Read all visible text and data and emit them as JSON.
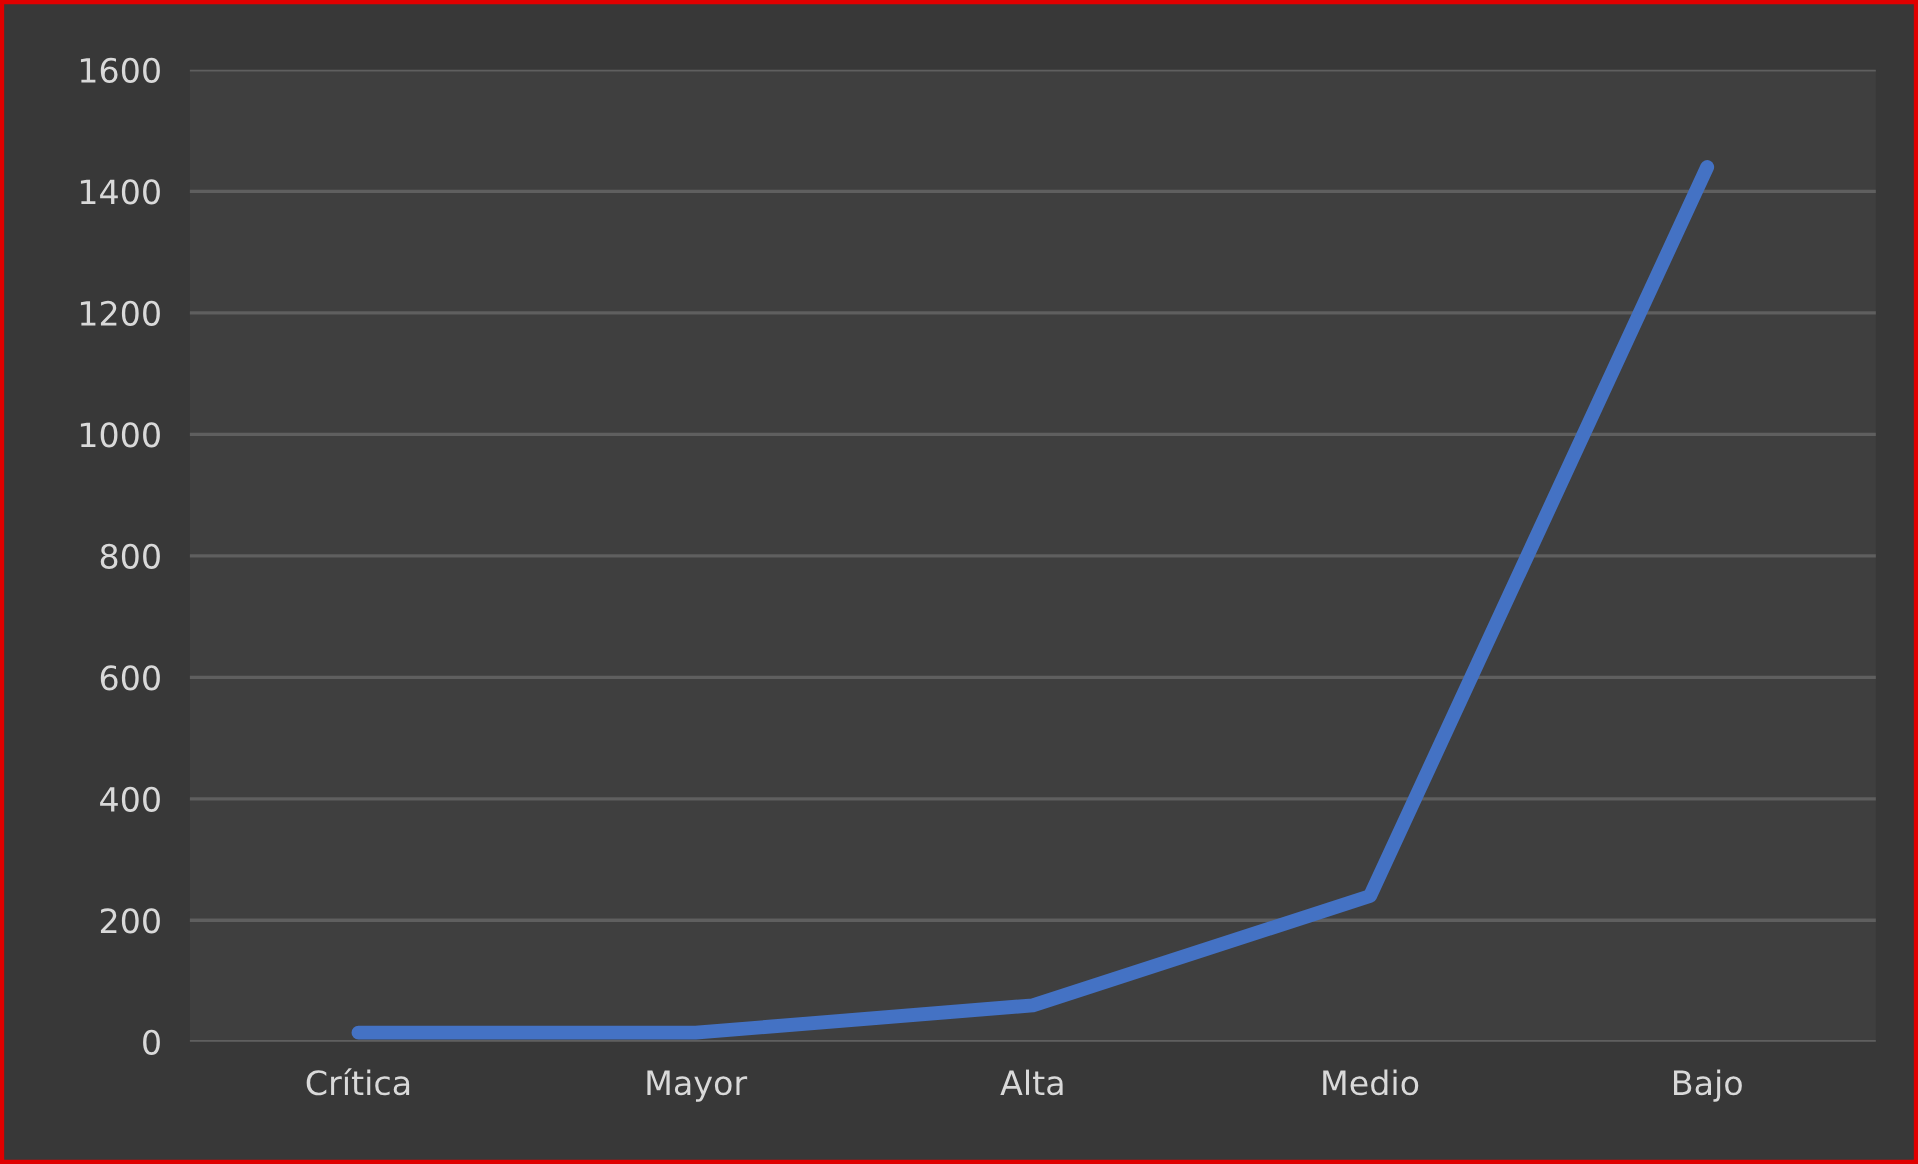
{
  "chart_data": {
    "type": "line",
    "categories": [
      "Crítica",
      "Mayor",
      "Alta",
      "Medio",
      "Bajo"
    ],
    "series": [
      {
        "color": "#4472c4",
        "values": [
          15,
          15,
          60,
          240,
          1440
        ]
      }
    ],
    "ylim": [
      0,
      1600
    ],
    "yticks": [
      0,
      200,
      400,
      600,
      800,
      1000,
      1200,
      1400,
      1600
    ],
    "grid": "y",
    "marker": "none",
    "line_style": "solid"
  }
}
